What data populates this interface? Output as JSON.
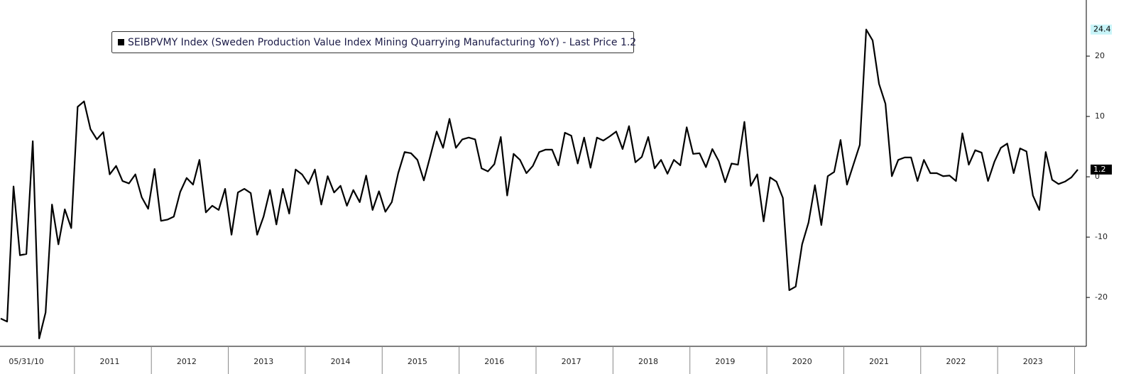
{
  "chart_data": {
    "type": "line",
    "categories": [
      null,
      null,
      null,
      null,
      "05/31/10",
      null,
      null,
      null,
      null,
      null,
      null,
      null,
      null,
      null,
      null,
      null,
      null,
      "2011",
      null,
      null,
      null,
      null,
      null,
      null,
      null,
      null,
      null,
      null,
      null,
      "2012",
      null,
      null,
      null,
      null,
      null,
      null,
      null,
      null,
      null,
      null,
      null,
      "2013",
      null,
      null,
      null,
      null,
      null,
      null,
      null,
      null,
      null,
      null,
      null,
      "2014",
      null,
      null,
      null,
      null,
      null,
      null,
      null,
      null,
      null,
      null,
      null,
      "2015",
      null,
      null,
      null,
      null,
      null,
      null,
      null,
      null,
      null,
      null,
      null,
      "2016",
      null,
      null,
      null,
      null,
      null,
      null,
      null,
      null,
      null,
      null,
      null,
      "2017",
      null,
      null,
      null,
      null,
      null,
      null,
      null,
      null,
      null,
      null,
      null,
      "2018",
      null,
      null,
      null,
      null,
      null,
      null,
      null,
      null,
      null,
      null,
      null,
      "2019",
      null,
      null,
      null,
      null,
      null,
      null,
      null,
      null,
      null,
      null,
      null,
      "2020",
      null,
      null,
      null,
      null,
      null,
      null,
      null,
      null,
      null,
      null,
      null,
      "2021",
      null,
      null,
      null,
      null,
      null,
      null,
      null,
      null,
      null,
      null,
      null,
      "2022",
      null,
      null,
      null,
      null,
      null,
      null,
      null,
      null,
      null,
      null,
      null,
      "2023",
      null,
      null,
      null,
      null,
      null,
      null,
      null
    ],
    "series": [
      {
        "name": "SEIBPVMY Index (Sweden Production Value Index Mining Quarrying Manufacturing YoY) - Last Price 1.2",
        "color": "#000000",
        "values": [
          -23.5,
          -24,
          -1.6,
          -13,
          -12.8,
          5.9,
          -26.8,
          -22.5,
          -4.6,
          -11.2,
          -5.4,
          -8.5,
          11.6,
          12.5,
          7.9,
          6.2,
          7.4,
          0.4,
          1.8,
          -0.7,
          -1.1,
          0.4,
          -3.4,
          -5.3,
          1.3,
          -7.3,
          -7.1,
          -6.6,
          -2.5,
          -0.2,
          -1.3,
          2.8,
          -5.9,
          -4.8,
          -5.5,
          -2,
          -9.6,
          -2.6,
          -2,
          -2.7,
          -9.6,
          -6.6,
          -2.2,
          -7.9,
          -2,
          -6.1,
          1.2,
          0.4,
          -1.2,
          1.2,
          -4.6,
          0.1,
          -2.6,
          -1.5,
          -4.8,
          -2.2,
          -4.2,
          0.2,
          -5.5,
          -2.4,
          -5.8,
          -4.2,
          0.6,
          4.1,
          3.9,
          2.8,
          -0.6,
          3.4,
          7.5,
          4.8,
          9.6,
          4.8,
          6.2,
          6.5,
          6.2,
          1.4,
          0.9,
          2.1,
          6.6,
          -3.1,
          3.8,
          2.8,
          0.6,
          1.8,
          4.1,
          4.5,
          4.5,
          1.9,
          7.3,
          6.8,
          2.2,
          6.5,
          1.5,
          6.5,
          6,
          6.7,
          7.5,
          4.6,
          8.4,
          2.4,
          3.3,
          6.6,
          1.4,
          2.8,
          0.5,
          2.8,
          1.9,
          8.2,
          3.8,
          3.9,
          1.6,
          4.6,
          2.6,
          -0.9,
          2.2,
          2,
          9.1,
          -1.5,
          0.4,
          -7.4,
          -0.1,
          -0.8,
          -3.5,
          -18.8,
          -18.2,
          -11.2,
          -7.6,
          -1.4,
          -8,
          0.1,
          0.8,
          6.1,
          -1.3,
          2,
          5.3,
          24.4,
          22.6,
          15.4,
          12.1,
          0.1,
          2.8,
          3.2,
          3.2,
          -0.7,
          2.8,
          0.6,
          0.6,
          0.1,
          0.2,
          -0.7,
          7.2,
          2,
          4.4,
          4,
          -0.7,
          2.5,
          4.8,
          5.5,
          0.6,
          4.7,
          4.2,
          -3.1,
          -5.5,
          4.1,
          -0.5,
          -1.2,
          -0.8,
          -0.1,
          1.2
        ]
      }
    ],
    "ylim": [
      -28.1,
      29.3
    ],
    "yticks": [
      -20,
      -10,
      0,
      10,
      20
    ],
    "annotations": [
      {
        "text": "24.4",
        "value": 24.4,
        "background": "#c8f4f8",
        "text_color": "#000000"
      },
      {
        "text": "1.2",
        "value": 1.2,
        "background": "#000000",
        "text_color": "#ffffff"
      }
    ],
    "grid": false
  }
}
